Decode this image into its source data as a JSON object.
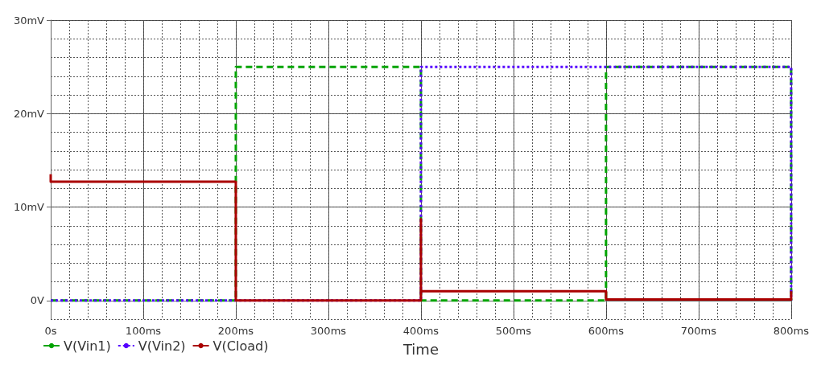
{
  "chart_data": {
    "type": "line",
    "xlabel": "Time",
    "xlim": [
      0,
      800
    ],
    "xticks": [
      {
        "value": 0,
        "label": "0s"
      },
      {
        "value": 100,
        "label": "100ms"
      },
      {
        "value": 200,
        "label": "200ms"
      },
      {
        "value": 300,
        "label": "300ms"
      },
      {
        "value": 400,
        "label": "400ms"
      },
      {
        "value": 500,
        "label": "500ms"
      },
      {
        "value": 600,
        "label": "600ms"
      },
      {
        "value": 700,
        "label": "700ms"
      },
      {
        "value": 800,
        "label": "800ms"
      }
    ],
    "ylim": [
      -2,
      30
    ],
    "yticks": [
      {
        "value": 0,
        "label": "0V"
      },
      {
        "value": 10,
        "label": "10mV"
      },
      {
        "value": 20,
        "label": "20mV"
      },
      {
        "value": 30,
        "label": "30mV"
      }
    ],
    "grid": true,
    "legend": "bottom left",
    "series": [
      {
        "name": "V(Vin1)",
        "color": "#00a400",
        "line_style": "dashed",
        "x": [
          0,
          200,
          200,
          400,
          400,
          600,
          600,
          800,
          800
        ],
        "values": [
          0,
          0,
          25,
          25,
          0,
          0,
          25,
          25,
          0
        ]
      },
      {
        "name": "V(Vin2)",
        "color": "#5500ff",
        "line_style": "dotted",
        "x": [
          0,
          400,
          400,
          800,
          800
        ],
        "values": [
          0,
          0,
          25,
          25,
          0
        ]
      },
      {
        "name": "V(Cload)",
        "color": "#aa0000",
        "line_style": "solid",
        "x": [
          0,
          0,
          200,
          200,
          400,
          400,
          400,
          600,
          600,
          800,
          800
        ],
        "values": [
          13.5,
          12.7,
          12.7,
          0,
          0,
          8.7,
          1,
          1,
          0.1,
          0.1,
          1
        ]
      }
    ]
  }
}
